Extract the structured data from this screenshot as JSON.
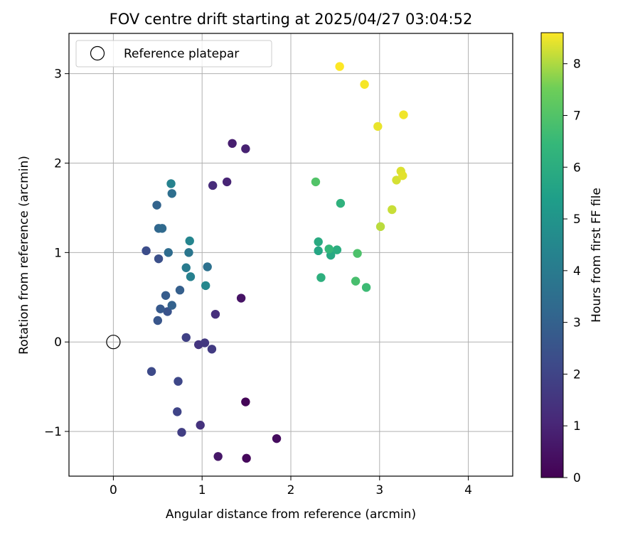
{
  "chart_data": {
    "type": "scatter",
    "title": "FOV centre drift starting at 2025/04/27 03:04:52",
    "xlabel": "Angular distance from reference (arcmin)",
    "ylabel": "Rotation from reference (arcmin)",
    "xlim": [
      -0.5,
      4.5
    ],
    "ylim": [
      -1.5,
      3.45
    ],
    "xticks": [
      0,
      1,
      2,
      3,
      4
    ],
    "xtick_labels": [
      "0",
      "1",
      "2",
      "3",
      "4"
    ],
    "yticks": [
      -1,
      0,
      1,
      2,
      3
    ],
    "ytick_labels": [
      "−1",
      "0",
      "1",
      "2",
      "3"
    ],
    "grid": true,
    "legend": {
      "position": "top-left",
      "entries": [
        "Reference platepar"
      ]
    },
    "reference_point": {
      "x": 0,
      "y": 0,
      "label": "Reference platepar"
    },
    "colorbar": {
      "label": "Hours from first FF file",
      "range": [
        0,
        8.6
      ],
      "ticks": [
        0,
        1,
        2,
        3,
        4,
        5,
        6,
        7,
        8
      ],
      "tick_labels": [
        "0",
        "1",
        "2",
        "3",
        "4",
        "5",
        "6",
        "7",
        "8"
      ],
      "colormap": "viridis"
    },
    "points": [
      {
        "x": 1.49,
        "y": -0.67,
        "c": 0.1
      },
      {
        "x": 1.5,
        "y": -1.3,
        "c": 0.2
      },
      {
        "x": 1.84,
        "y": -1.08,
        "c": 0.3
      },
      {
        "x": 1.44,
        "y": 0.49,
        "c": 0.5
      },
      {
        "x": 1.18,
        "y": -1.28,
        "c": 0.6
      },
      {
        "x": 1.34,
        "y": 2.22,
        "c": 0.8
      },
      {
        "x": 1.49,
        "y": 2.16,
        "c": 0.9
      },
      {
        "x": 1.28,
        "y": 1.79,
        "c": 1.0
      },
      {
        "x": 1.12,
        "y": 1.75,
        "c": 1.2
      },
      {
        "x": 1.15,
        "y": 0.31,
        "c": 1.3
      },
      {
        "x": 0.98,
        "y": -0.93,
        "c": 1.4
      },
      {
        "x": 0.96,
        "y": -0.03,
        "c": 1.5
      },
      {
        "x": 1.03,
        "y": -0.01,
        "c": 1.6
      },
      {
        "x": 1.11,
        "y": -0.08,
        "c": 1.7
      },
      {
        "x": 0.77,
        "y": -1.01,
        "c": 1.8
      },
      {
        "x": 0.82,
        "y": 0.05,
        "c": 1.9
      },
      {
        "x": 0.72,
        "y": -0.78,
        "c": 2.0
      },
      {
        "x": 0.73,
        "y": -0.44,
        "c": 2.1
      },
      {
        "x": 0.43,
        "y": -0.33,
        "c": 2.2
      },
      {
        "x": 0.37,
        "y": 1.02,
        "c": 2.3
      },
      {
        "x": 0.51,
        "y": 0.93,
        "c": 2.4
      },
      {
        "x": 0.61,
        "y": 0.34,
        "c": 2.5
      },
      {
        "x": 0.5,
        "y": 0.24,
        "c": 2.6
      },
      {
        "x": 0.53,
        "y": 0.37,
        "c": 2.7
      },
      {
        "x": 0.59,
        "y": 0.52,
        "c": 2.8
      },
      {
        "x": 0.75,
        "y": 0.58,
        "c": 2.9
      },
      {
        "x": 0.66,
        "y": 0.41,
        "c": 3.0
      },
      {
        "x": 0.49,
        "y": 1.53,
        "c": 3.1
      },
      {
        "x": 0.51,
        "y": 1.27,
        "c": 3.2
      },
      {
        "x": 0.55,
        "y": 1.27,
        "c": 3.3
      },
      {
        "x": 0.62,
        "y": 1.0,
        "c": 3.4
      },
      {
        "x": 0.66,
        "y": 1.66,
        "c": 3.5
      },
      {
        "x": 1.06,
        "y": 0.84,
        "c": 3.6
      },
      {
        "x": 0.85,
        "y": 1.0,
        "c": 3.8
      },
      {
        "x": 0.82,
        "y": 0.83,
        "c": 4.0
      },
      {
        "x": 0.87,
        "y": 0.73,
        "c": 4.2
      },
      {
        "x": 0.65,
        "y": 1.77,
        "c": 4.3
      },
      {
        "x": 0.86,
        "y": 1.13,
        "c": 4.4
      },
      {
        "x": 1.04,
        "y": 0.63,
        "c": 4.5
      },
      {
        "x": 2.31,
        "y": 1.02,
        "c": 5.7
      },
      {
        "x": 2.45,
        "y": 0.97,
        "c": 5.8
      },
      {
        "x": 2.31,
        "y": 1.12,
        "c": 5.9
      },
      {
        "x": 2.52,
        "y": 1.03,
        "c": 6.0
      },
      {
        "x": 2.34,
        "y": 0.72,
        "c": 6.1
      },
      {
        "x": 2.56,
        "y": 1.55,
        "c": 6.2
      },
      {
        "x": 2.43,
        "y": 1.04,
        "c": 6.4
      },
      {
        "x": 2.85,
        "y": 0.61,
        "c": 6.6
      },
      {
        "x": 2.73,
        "y": 0.68,
        "c": 6.8
      },
      {
        "x": 2.75,
        "y": 0.99,
        "c": 6.9
      },
      {
        "x": 2.28,
        "y": 1.79,
        "c": 7.0
      },
      {
        "x": 3.01,
        "y": 1.29,
        "c": 8.1
      },
      {
        "x": 3.14,
        "y": 1.48,
        "c": 8.2
      },
      {
        "x": 3.19,
        "y": 1.81,
        "c": 8.3
      },
      {
        "x": 3.24,
        "y": 1.91,
        "c": 8.35
      },
      {
        "x": 3.26,
        "y": 1.86,
        "c": 8.4
      },
      {
        "x": 2.98,
        "y": 2.41,
        "c": 8.45
      },
      {
        "x": 3.27,
        "y": 2.54,
        "c": 8.5
      },
      {
        "x": 2.83,
        "y": 2.88,
        "c": 8.55
      },
      {
        "x": 2.55,
        "y": 3.08,
        "c": 8.6
      }
    ]
  }
}
